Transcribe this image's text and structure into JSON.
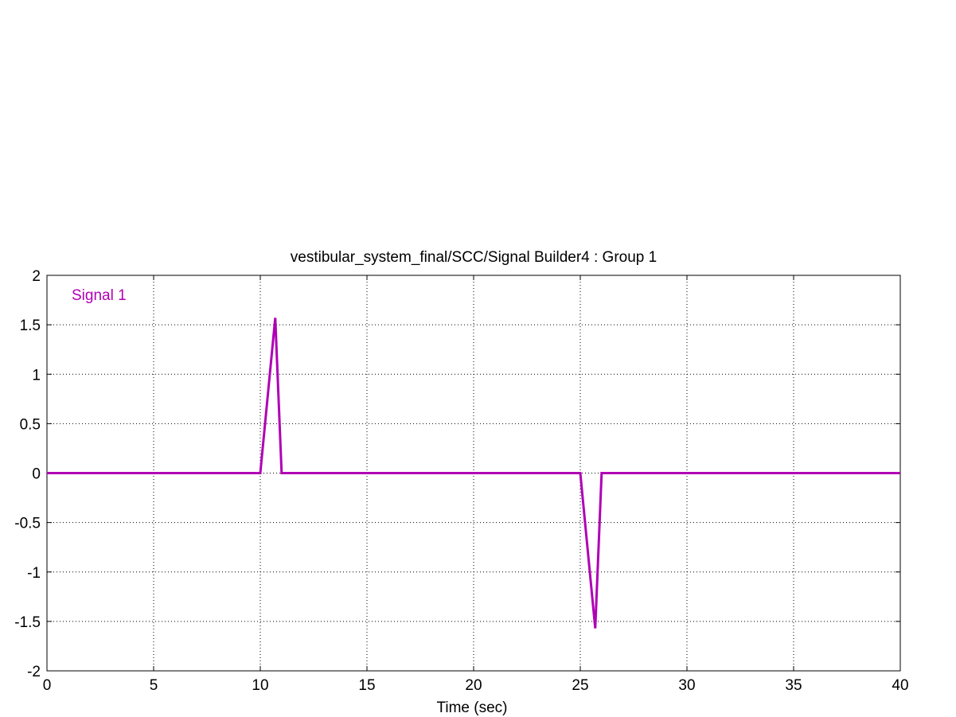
{
  "chart_data": {
    "type": "line",
    "title": "vestibular_system_final/SCC/Signal Builder4 : Group 1",
    "xlabel": "Time (sec)",
    "ylabel": "",
    "xlim": [
      0,
      40
    ],
    "ylim": [
      -2,
      2
    ],
    "xticks": [
      0,
      5,
      10,
      15,
      20,
      25,
      30,
      35,
      40
    ],
    "yticks": [
      2,
      1.5,
      1,
      0.5,
      0,
      -0.5,
      -1,
      -1.5,
      -2
    ],
    "xtick_labels": [
      "0",
      "5",
      "10",
      "15",
      "20",
      "25",
      "30",
      "35",
      "40"
    ],
    "ytick_labels": [
      "2",
      "1.5",
      "1",
      "0.5",
      "0",
      "-0.5",
      "-1",
      "-1.5",
      "-2"
    ],
    "grid": true,
    "legend_position": "top-left",
    "series": [
      {
        "name": "Signal 1",
        "color": "#b000b5",
        "x": [
          0,
          10,
          10.7,
          11,
          25,
          25.7,
          26,
          40
        ],
        "y": [
          0,
          0,
          1.57,
          0,
          0,
          -1.57,
          0,
          0
        ]
      }
    ]
  }
}
